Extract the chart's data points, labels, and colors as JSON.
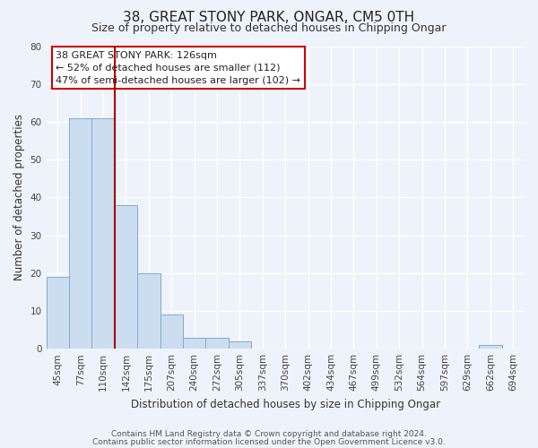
{
  "title": "38, GREAT STONY PARK, ONGAR, CM5 0TH",
  "subtitle": "Size of property relative to detached houses in Chipping Ongar",
  "xlabel": "Distribution of detached houses by size in Chipping Ongar",
  "ylabel": "Number of detached properties",
  "bin_labels": [
    "45sqm",
    "77sqm",
    "110sqm",
    "142sqm",
    "175sqm",
    "207sqm",
    "240sqm",
    "272sqm",
    "305sqm",
    "337sqm",
    "370sqm",
    "402sqm",
    "434sqm",
    "467sqm",
    "499sqm",
    "532sqm",
    "564sqm",
    "597sqm",
    "629sqm",
    "662sqm",
    "694sqm"
  ],
  "bar_values": [
    19,
    61,
    61,
    38,
    20,
    9,
    3,
    3,
    2,
    0,
    0,
    0,
    0,
    0,
    0,
    0,
    0,
    0,
    0,
    1,
    0
  ],
  "bar_color": "#ccddf0",
  "bar_edge_color": "#7aadcf",
  "vline_color": "#aa0000",
  "ylim": [
    0,
    80
  ],
  "yticks": [
    0,
    10,
    20,
    30,
    40,
    50,
    60,
    70,
    80
  ],
  "annotation_lines": [
    "38 GREAT STONY PARK: 126sqm",
    "← 52% of detached houses are smaller (112)",
    "47% of semi-detached houses are larger (102) →"
  ],
  "annotation_box_color": "#ffffff",
  "annotation_box_edge": "#cc0000",
  "footer_lines": [
    "Contains HM Land Registry data © Crown copyright and database right 2024.",
    "Contains public sector information licensed under the Open Government Licence v3.0."
  ],
  "bg_color": "#eef2fa",
  "grid_color": "#ffffff",
  "title_fontsize": 11,
  "subtitle_fontsize": 9,
  "axis_label_fontsize": 8.5,
  "tick_fontsize": 7.5,
  "annotation_fontsize": 8,
  "footer_fontsize": 6.5
}
